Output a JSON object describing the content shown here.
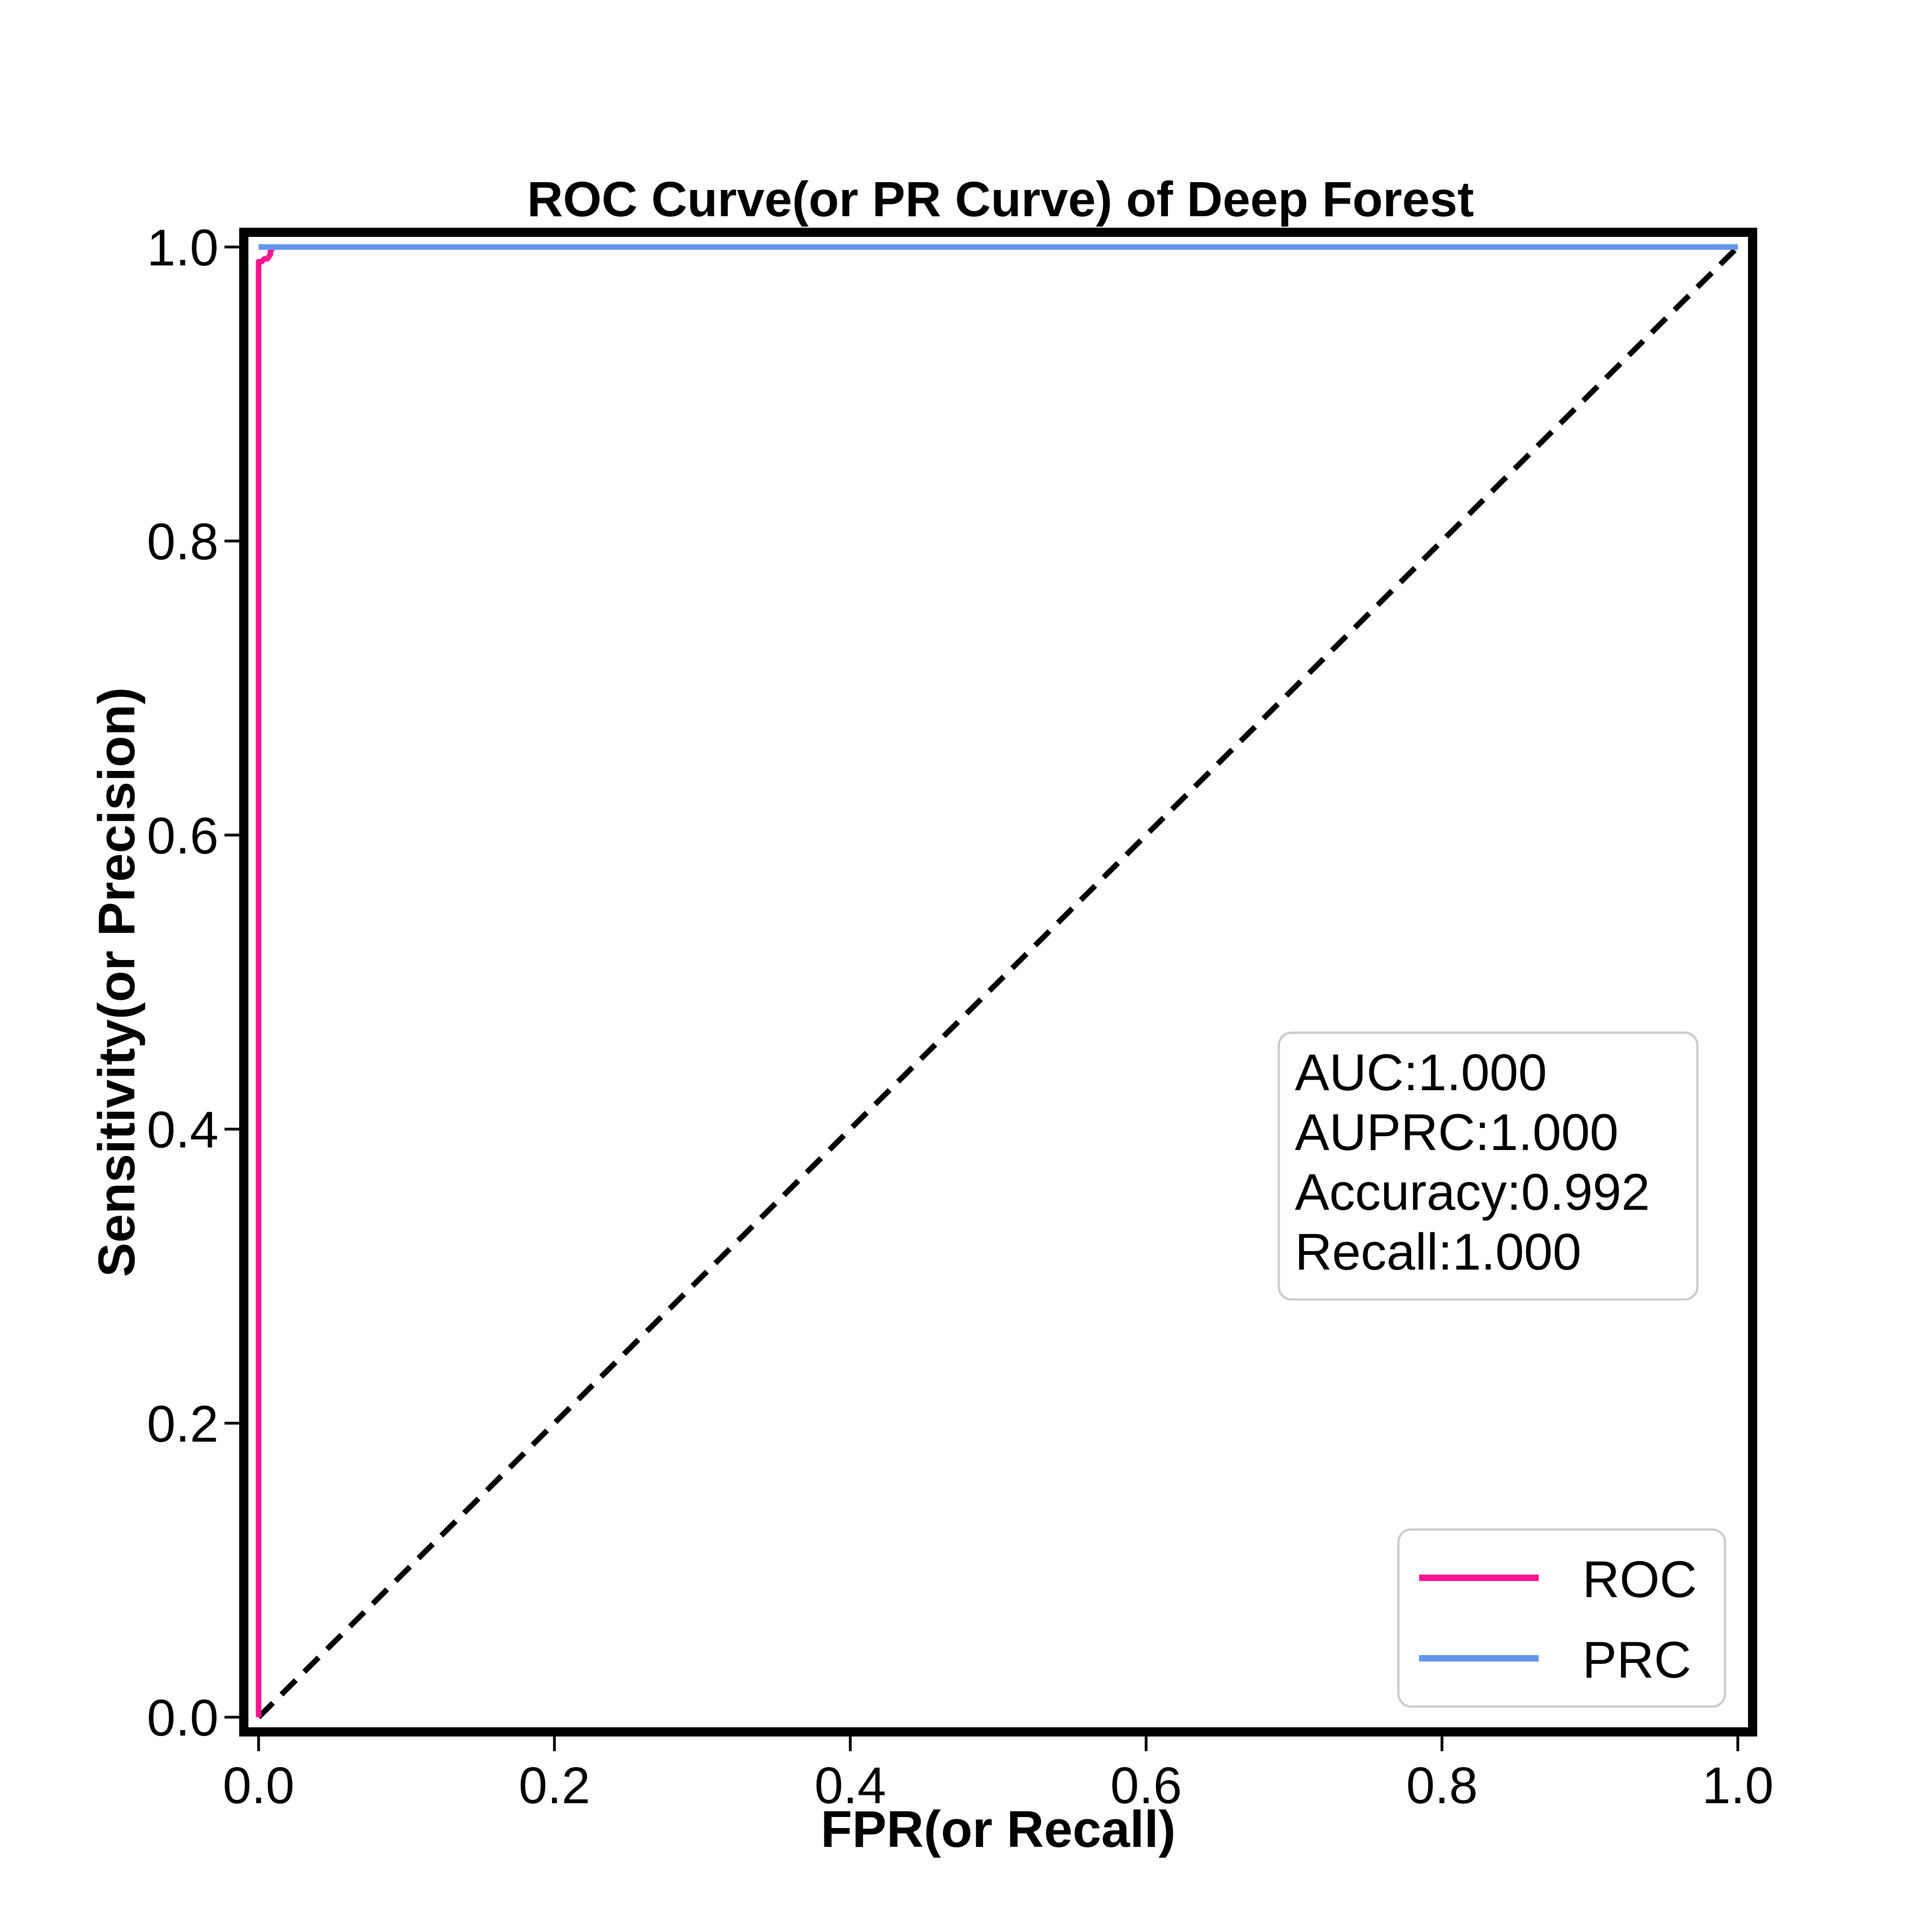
{
  "chart_data": {
    "type": "line",
    "title": "ROC Curve(or PR Curve) of Deep Forest",
    "xlabel": "FPR(or Recall)",
    "ylabel": "Sensitivity(or Precision)",
    "xlim": [
      -0.01,
      1.01
    ],
    "ylim": [
      -0.01,
      1.01
    ],
    "xticks": [
      0.0,
      0.2,
      0.4,
      0.6,
      0.8,
      1.0
    ],
    "xtick_labels": [
      "0.0",
      "0.2",
      "0.4",
      "0.6",
      "0.8",
      "1.0"
    ],
    "yticks": [
      0.0,
      0.2,
      0.4,
      0.6,
      0.8,
      1.0
    ],
    "ytick_labels": [
      "0.0",
      "0.2",
      "0.4",
      "0.6",
      "0.8",
      "1.0"
    ],
    "grid": false,
    "legend_position": "lower-right",
    "series": [
      {
        "name": "ROC",
        "color": "#ff1493",
        "x": [
          0.0,
          0.0,
          0.0,
          0.002,
          0.004,
          0.006,
          0.008,
          0.008,
          0.01,
          1.0
        ],
        "y": [
          0.0,
          0.99,
          0.99,
          0.99,
          0.992,
          0.992,
          0.995,
          0.997,
          1.0,
          1.0
        ]
      },
      {
        "name": "PRC",
        "color": "#6495ed",
        "x": [
          0.0,
          1.0
        ],
        "y": [
          1.0,
          1.0
        ]
      }
    ],
    "reference_line": {
      "x": [
        0.0,
        1.0
      ],
      "y": [
        0.0,
        1.0
      ],
      "color": "#000000",
      "style": "dashed"
    },
    "stats_box": {
      "lines": [
        "AUC:1.000",
        "AUPRC:1.000",
        "Accuracy:0.992",
        "Recall:1.000"
      ]
    }
  }
}
